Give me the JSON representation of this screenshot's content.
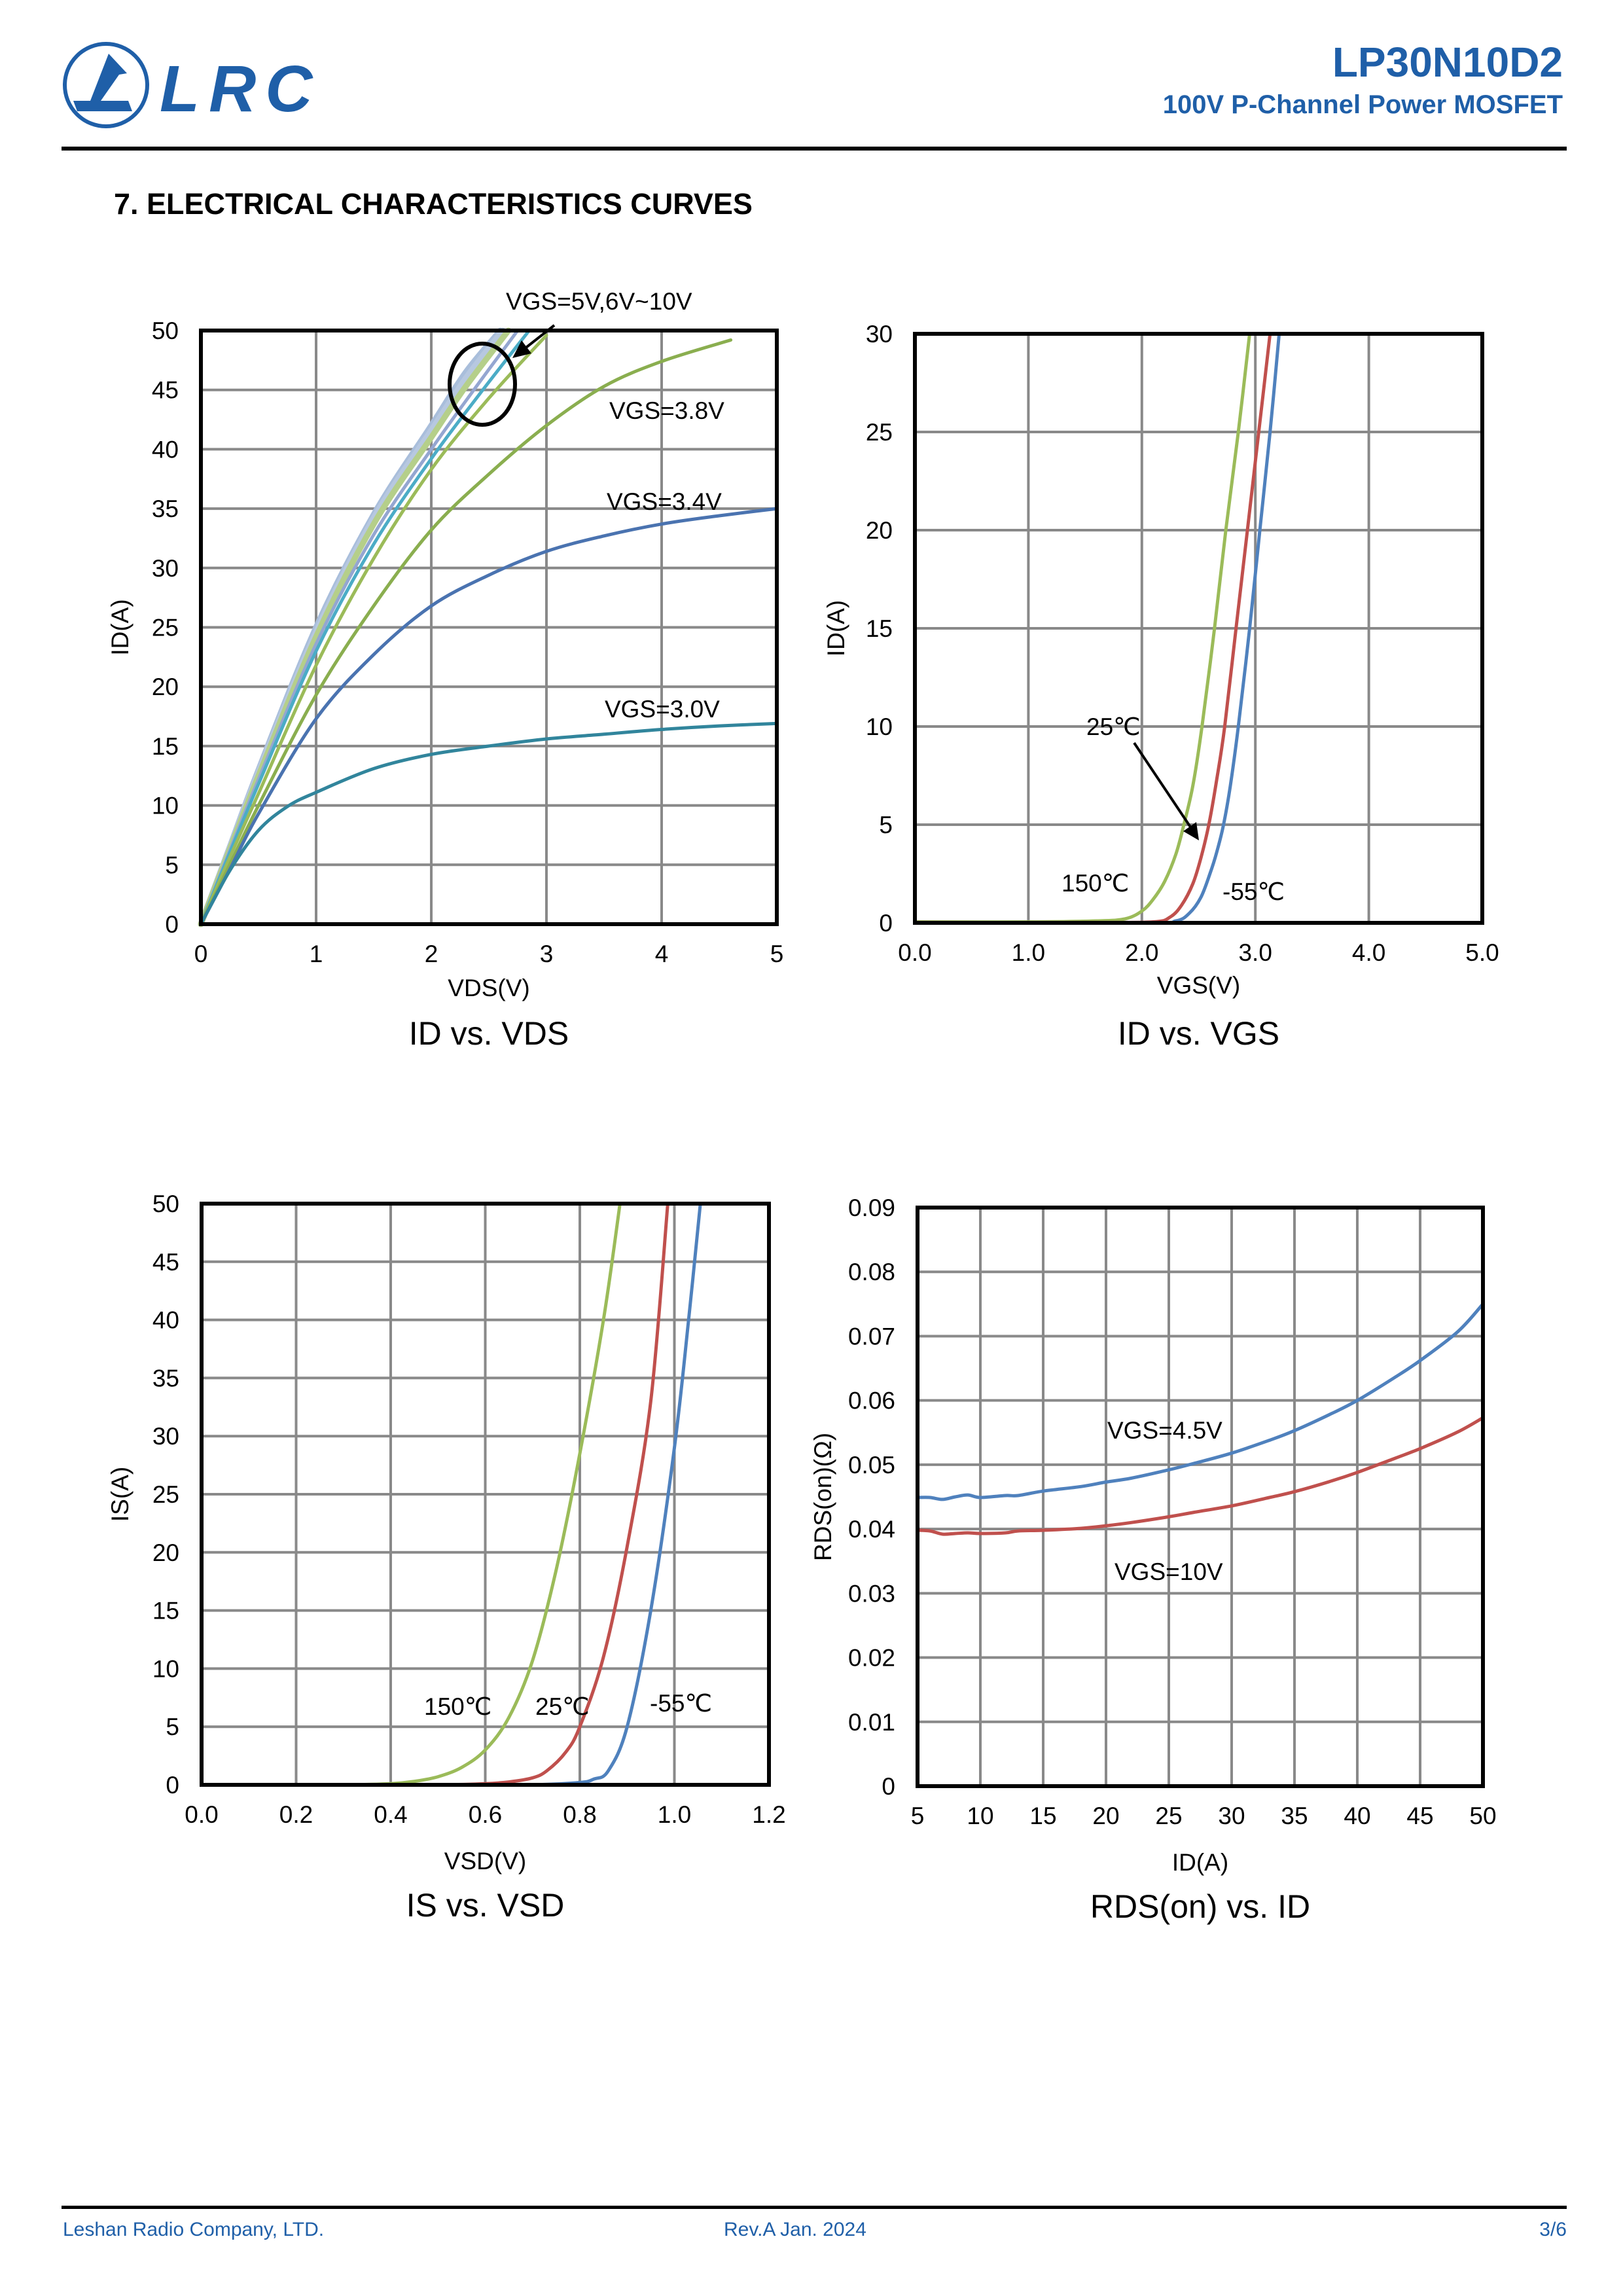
{
  "header": {
    "logo_text": "LRC",
    "part_number": "LP30N10D2",
    "subtitle": "100V P-Channel Power MOSFET",
    "brand_color": "#1F5FA8"
  },
  "section_title": "7. ELECTRICAL CHARACTERISTICS CURVES",
  "footer": {
    "company": "Leshan Radio Company, LTD.",
    "revision": "Rev.A   Jan.  2024",
    "page": "3/6"
  },
  "chart_data": [
    {
      "id": "id-vs-vds",
      "type": "line",
      "title": "ID vs. VDS",
      "xlabel": "VDS(V)",
      "ylabel": "ID(A)",
      "xlim": [
        0,
        5
      ],
      "ylim": [
        0,
        50
      ],
      "xticks": [
        "0",
        "1",
        "2",
        "3",
        "4",
        "5"
      ],
      "yticks": [
        "0",
        "5",
        "10",
        "15",
        "20",
        "25",
        "30",
        "35",
        "40",
        "45",
        "50"
      ],
      "xtick_values": [
        0,
        1,
        2,
        3,
        4,
        5
      ],
      "ytick_values": [
        0,
        5,
        10,
        15,
        20,
        25,
        30,
        35,
        40,
        45,
        50
      ],
      "grid": true,
      "annotations": [
        {
          "text": "VGS=5V,6V~10V",
          "target": "curve-cluster"
        },
        {
          "text": "VGS=3.8V"
        },
        {
          "text": "VGS=3.4V"
        },
        {
          "text": "VGS=3.0V"
        }
      ],
      "series": [
        {
          "name": "VGS=10V",
          "color": "#A9BEDB",
          "x": [
            0,
            0.25,
            0.5,
            1,
            1.5,
            2,
            2.3,
            2.6
          ],
          "y": [
            0,
            6.5,
            13,
            25,
            34.5,
            42,
            46.5,
            50
          ]
        },
        {
          "name": "VGS=9V",
          "color": "#B7C8E0",
          "x": [
            0,
            0.25,
            0.5,
            1,
            1.5,
            2,
            2.3,
            2.62
          ],
          "y": [
            0,
            6.4,
            12.8,
            24.6,
            34.2,
            41.6,
            46,
            50
          ]
        },
        {
          "name": "VGS=8V",
          "color": "#B5CF8A",
          "x": [
            0,
            0.25,
            0.5,
            1,
            1.5,
            2,
            2.3,
            2.67
          ],
          "y": [
            0,
            6.3,
            12.5,
            24.2,
            33.7,
            41,
            45.3,
            50
          ]
        },
        {
          "name": "VGS=7V",
          "color": "#94A6D1",
          "x": [
            0,
            0.25,
            0.5,
            1,
            1.5,
            2,
            2.4,
            2.75
          ],
          "y": [
            0,
            6.2,
            12.2,
            23.6,
            32.8,
            40,
            45.4,
            50
          ]
        },
        {
          "name": "VGS=6V",
          "color": "#4BACC6",
          "x": [
            0,
            0.25,
            0.5,
            1,
            1.5,
            2,
            2.4,
            2.85
          ],
          "y": [
            0,
            6,
            11.8,
            23,
            32,
            39.2,
            44.4,
            50
          ]
        },
        {
          "name": "VGS=5V",
          "color": "#9BBB59",
          "x": [
            0,
            0.25,
            0.5,
            1,
            1.5,
            2,
            2.5,
            3.0
          ],
          "y": [
            0,
            5.6,
            11,
            21.8,
            30.8,
            38.3,
            44.3,
            49.6
          ]
        },
        {
          "name": "VGS=3.8V",
          "color": "#8AAE4F",
          "x": [
            0,
            0.25,
            0.5,
            1,
            1.5,
            2,
            2.5,
            3,
            3.5,
            4,
            4.6
          ],
          "y": [
            0,
            5,
            10,
            19.3,
            26.8,
            33.2,
            37.9,
            42,
            45.3,
            47.4,
            49.2
          ]
        },
        {
          "name": "VGS=3.4V",
          "color": "#4A73B0",
          "x": [
            0,
            0.25,
            0.5,
            1,
            1.5,
            2,
            2.5,
            3,
            3.5,
            4,
            4.5,
            5
          ],
          "y": [
            0,
            4.6,
            9.3,
            17.3,
            22.7,
            26.8,
            29.4,
            31.4,
            32.7,
            33.7,
            34.4,
            35
          ]
        },
        {
          "name": "VGS=3.0V",
          "color": "#31859C",
          "x": [
            0,
            0.25,
            0.5,
            0.75,
            1,
            1.5,
            2,
            2.5,
            3,
            3.5,
            4,
            4.5,
            5
          ],
          "y": [
            0,
            4.5,
            7.9,
            9.9,
            11.1,
            13.1,
            14.3,
            15,
            15.6,
            16,
            16.4,
            16.7,
            16.9
          ]
        }
      ]
    },
    {
      "id": "id-vs-vgs",
      "type": "line",
      "title": "ID vs. VGS",
      "xlabel": "VGS(V)",
      "ylabel": "ID(A)",
      "xlim": [
        0,
        5
      ],
      "ylim": [
        0,
        30
      ],
      "xticks": [
        "0.0",
        "1.0",
        "2.0",
        "3.0",
        "4.0",
        "5.0"
      ],
      "yticks": [
        "0",
        "5",
        "10",
        "15",
        "20",
        "25",
        "30"
      ],
      "xtick_values": [
        0,
        1,
        2,
        3,
        4,
        5
      ],
      "ytick_values": [
        0,
        5,
        10,
        15,
        20,
        25,
        30
      ],
      "grid": true,
      "annotations": [
        {
          "text": "25℃",
          "arrow": true
        },
        {
          "text": "150℃"
        },
        {
          "text": "-55℃"
        }
      ],
      "series": [
        {
          "name": "150℃",
          "color": "#9BBB59",
          "x": [
            0,
            1.0,
            1.6,
            1.85,
            2.0,
            2.1,
            2.2,
            2.3,
            2.37,
            2.45,
            2.53,
            2.64,
            2.74,
            2.85,
            2.95
          ],
          "y": [
            0.05,
            0.05,
            0.1,
            0.2,
            0.6,
            1.2,
            2.1,
            3.5,
            5,
            7,
            10,
            15,
            20,
            25,
            30
          ]
        },
        {
          "name": "25℃",
          "color": "#C0504D",
          "x": [
            0,
            1.5,
            2.1,
            2.25,
            2.35,
            2.45,
            2.52,
            2.59,
            2.66,
            2.73,
            2.83,
            2.93,
            3.03,
            3.13
          ],
          "y": [
            0.02,
            0.02,
            0.05,
            0.3,
            0.9,
            2,
            3.3,
            5,
            7.3,
            10,
            15,
            20,
            25,
            30
          ]
        },
        {
          "name": "-55℃",
          "color": "#4F81BD",
          "x": [
            0,
            2.0,
            2.3,
            2.42,
            2.52,
            2.6,
            2.66,
            2.72,
            2.78,
            2.85,
            2.95,
            3.04,
            3.13,
            3.21
          ],
          "y": [
            0,
            0,
            0.1,
            0.5,
            1.3,
            2.5,
            3.6,
            5,
            7,
            10,
            15,
            20,
            25,
            30
          ]
        }
      ]
    },
    {
      "id": "is-vs-vsd",
      "type": "line",
      "title": "IS vs. VSD",
      "xlabel": "VSD(V)",
      "ylabel": "IS(A)",
      "xlim": [
        0,
        1.2
      ],
      "ylim": [
        0,
        50
      ],
      "xticks": [
        "0.0",
        "0.2",
        "0.4",
        "0.6",
        "0.8",
        "1.0",
        "1.2"
      ],
      "yticks": [
        "0",
        "5",
        "10",
        "15",
        "20",
        "25",
        "30",
        "35",
        "40",
        "45",
        "50"
      ],
      "xtick_values": [
        0,
        0.2,
        0.4,
        0.6,
        0.8,
        1.0,
        1.2
      ],
      "ytick_values": [
        0,
        5,
        10,
        15,
        20,
        25,
        30,
        35,
        40,
        45,
        50
      ],
      "grid": true,
      "annotations": [
        {
          "text": "150℃"
        },
        {
          "text": "25℃"
        },
        {
          "text": "-55℃"
        }
      ],
      "series": [
        {
          "name": "150℃",
          "color": "#9BBB59",
          "x": [
            0.2,
            0.3,
            0.4,
            0.45,
            0.5,
            0.55,
            0.6,
            0.65,
            0.7,
            0.75,
            0.8,
            0.85,
            0.885
          ],
          "y": [
            0,
            0,
            0.1,
            0.3,
            0.7,
            1.5,
            3,
            5.8,
            10.7,
            18.5,
            28.5,
            40,
            50
          ]
        },
        {
          "name": "25℃",
          "color": "#C0504D",
          "x": [
            0.4,
            0.5,
            0.6,
            0.65,
            0.7,
            0.73,
            0.77,
            0.8,
            0.85,
            0.9,
            0.95,
            0.986
          ],
          "y": [
            0,
            0,
            0.1,
            0.25,
            0.6,
            1.2,
            2.8,
            5,
            11,
            20.5,
            33,
            50
          ]
        },
        {
          "name": "-55℃",
          "color": "#4F81BD",
          "x": [
            0.6,
            0.7,
            0.8,
            0.83,
            0.86,
            0.9,
            0.95,
            1.0,
            1.03,
            1.055
          ],
          "y": [
            0,
            0,
            0.2,
            0.5,
            1.2,
            5,
            15,
            29,
            40,
            50
          ]
        }
      ]
    },
    {
      "id": "rdson-vs-id",
      "type": "line",
      "title": "RDS(on) vs. ID",
      "xlabel": "ID(A)",
      "ylabel": "RDS(on)(Ω)",
      "xlim": [
        5,
        50
      ],
      "ylim": [
        0,
        0.09
      ],
      "xticks": [
        "5",
        "10",
        "15",
        "20",
        "25",
        "30",
        "35",
        "40",
        "45",
        "50"
      ],
      "yticks": [
        "0",
        "0.01",
        "0.02",
        "0.03",
        "0.04",
        "0.05",
        "0.06",
        "0.07",
        "0.08",
        "0.09"
      ],
      "xtick_values": [
        5,
        10,
        15,
        20,
        25,
        30,
        35,
        40,
        45,
        50
      ],
      "ytick_values": [
        0,
        0.01,
        0.02,
        0.03,
        0.04,
        0.05,
        0.06,
        0.07,
        0.08,
        0.09
      ],
      "grid": true,
      "annotations": [
        {
          "text": "VGS=4.5V"
        },
        {
          "text": "VGS=10V"
        }
      ],
      "series": [
        {
          "name": "VGS=4.5V",
          "color": "#4F81BD",
          "x": [
            5,
            6,
            7,
            8,
            9,
            10,
            12,
            13,
            15,
            18,
            20,
            22,
            25,
            27,
            30,
            33,
            35,
            38,
            40,
            43,
            45,
            48,
            50
          ],
          "y": [
            0.0449,
            0.0449,
            0.0446,
            0.045,
            0.0453,
            0.0449,
            0.0452,
            0.0452,
            0.0459,
            0.0466,
            0.0473,
            0.0479,
            0.0492,
            0.0502,
            0.0518,
            0.0538,
            0.0553,
            0.058,
            0.06,
            0.0636,
            0.0662,
            0.0707,
            0.075
          ]
        },
        {
          "name": "VGS=10V",
          "color": "#C0504D",
          "x": [
            5,
            6,
            7,
            8,
            9,
            10,
            12,
            13,
            15,
            18,
            20,
            22,
            25,
            27,
            30,
            33,
            35,
            38,
            40,
            43,
            45,
            48,
            50
          ],
          "y": [
            0.0398,
            0.0397,
            0.0392,
            0.0393,
            0.0394,
            0.0393,
            0.0394,
            0.0397,
            0.0398,
            0.0401,
            0.0405,
            0.041,
            0.0419,
            0.0426,
            0.0436,
            0.0449,
            0.0458,
            0.0475,
            0.0488,
            0.051,
            0.0525,
            0.0551,
            0.0573
          ]
        }
      ]
    }
  ]
}
